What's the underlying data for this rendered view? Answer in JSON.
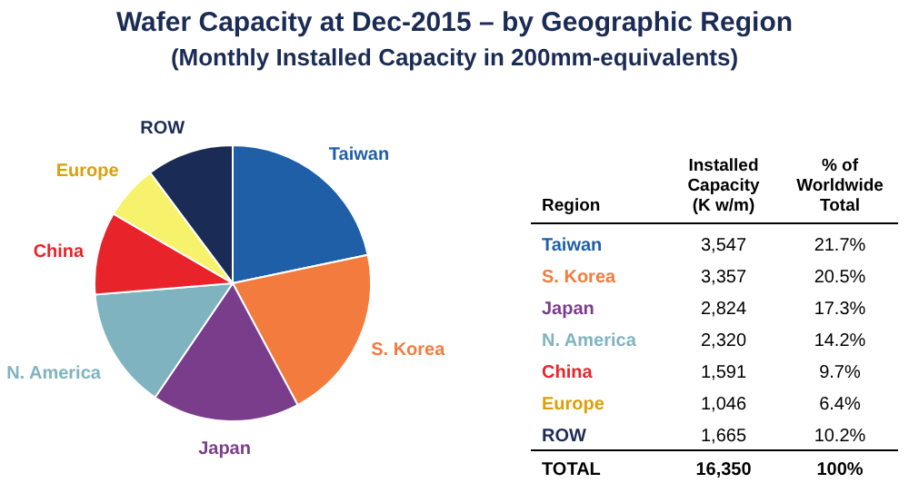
{
  "chart_data": [
    {
      "type": "pie",
      "title": "Wafer Capacity at Dec-2015 – by Geographic Region",
      "subtitle": "(Monthly Installed Capacity in 200mm-equivalents)",
      "categories": [
        "Taiwan",
        "S. Korea",
        "Japan",
        "N. America",
        "China",
        "Europe",
        "ROW"
      ],
      "values": [
        21.7,
        20.5,
        17.3,
        14.2,
        9.7,
        6.4,
        10.2
      ],
      "colors": [
        "#1f5fa8",
        "#f47b3e",
        "#7a3d8c",
        "#7fb3c0",
        "#e8242a",
        "#f6f26b",
        "#1a2b55"
      ]
    },
    {
      "type": "other",
      "annotations": [
        "Region",
        "Installed Capacity (K w/m)",
        "% of Worldwide Total",
        "Taiwan",
        "3,547",
        "21.7%",
        "S. Korea",
        "3,357",
        "20.5%",
        "Japan",
        "2,824",
        "17.3%",
        "N. America",
        "2,320",
        "14.2%",
        "China",
        "1,591",
        "9.7%",
        "Europe",
        "1,046",
        "6.4%",
        "ROW",
        "1,665",
        "10.2%",
        "TOTAL",
        "16,350",
        "100%"
      ]
    }
  ]
}
